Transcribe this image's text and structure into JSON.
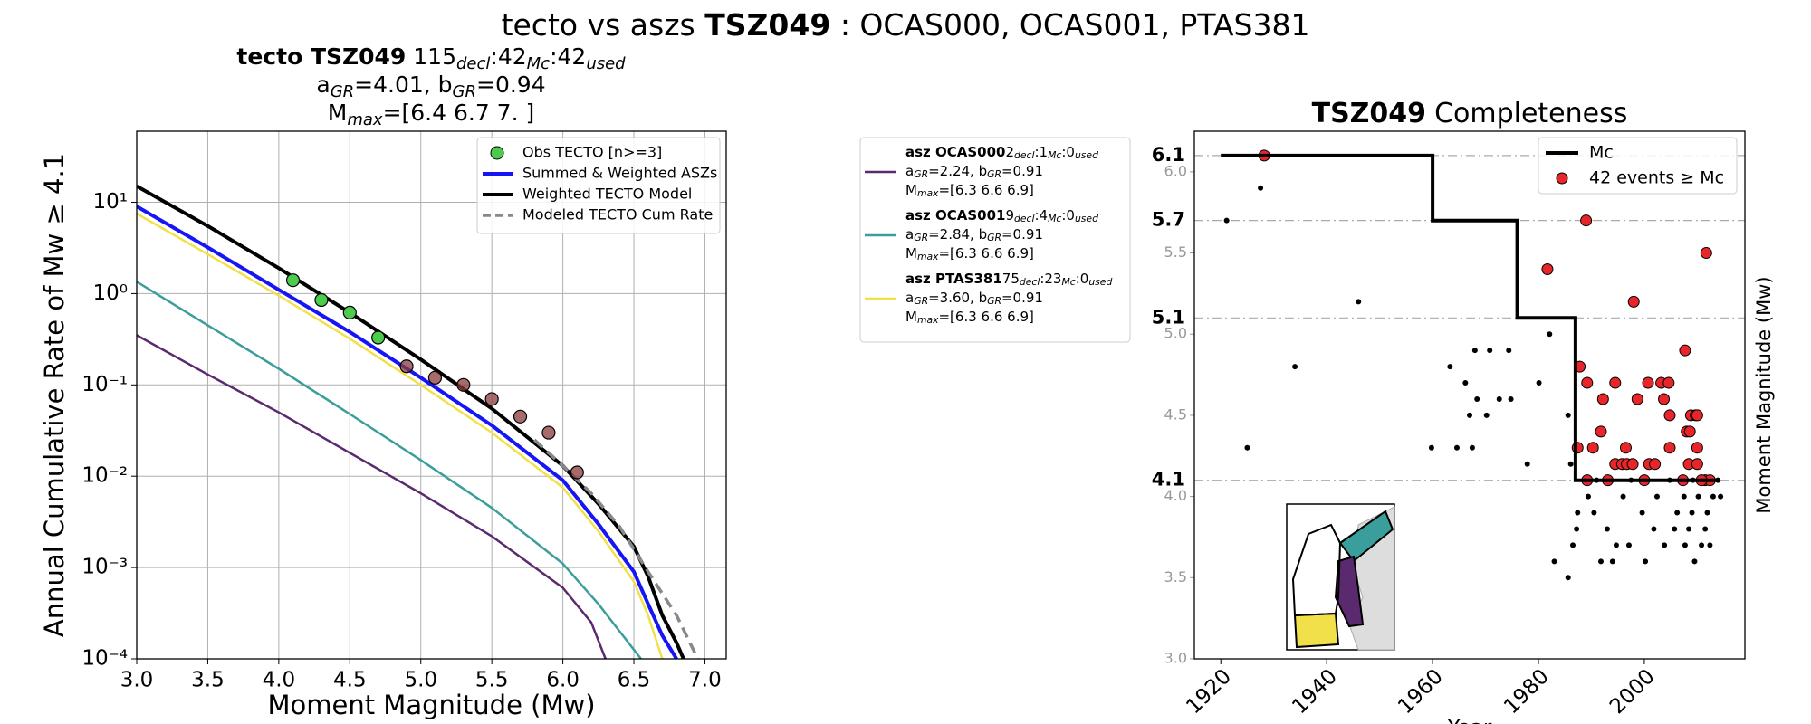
{
  "title": [
    "tecto vs aszs",
    "TSZ049",
    ": OCAS000, OCAS001, PTAS381"
  ],
  "chart_data": [
    {
      "type": "line",
      "subtitle_bold": "tecto TSZ049",
      "subtitle": [
        [
          "  115",
          "decl",
          ":42",
          "Mc",
          ":42",
          "used"
        ],
        [
          "a",
          "GR",
          "=4.01,  b",
          "GR",
          "=0.94"
        ],
        [
          "M",
          "max",
          "=[6.4 6.7 7. ]"
        ]
      ],
      "xlabel": "Moment Magnitude (Mw)",
      "ylabel": "Annual Cumulative Rate of Mw  ≥  4.1",
      "yscale": "log",
      "grid": true,
      "legend": "upper right",
      "xlim": [
        3.0,
        7.15
      ],
      "ylim": [
        0.0001,
        60
      ],
      "xticks": [
        {
          "value": 3,
          "label": "3.0"
        },
        {
          "value": 3.5,
          "label": "3.5"
        },
        {
          "value": 4,
          "label": "4.0"
        },
        {
          "value": 4.5,
          "label": "4.5"
        },
        {
          "value": 5,
          "label": "5.0"
        },
        {
          "value": 5.5,
          "label": "5.5"
        },
        {
          "value": 6,
          "label": "6.0"
        },
        {
          "value": 6.5,
          "label": "6.5"
        },
        {
          "value": 7,
          "label": "7.0"
        }
      ],
      "yticks": [
        {
          "value": 0.0001,
          "label": "10⁻⁴"
        },
        {
          "value": 0.001,
          "label": "10⁻³"
        },
        {
          "value": 0.01,
          "label": "10⁻²"
        },
        {
          "value": 0.1,
          "label": "10⁻¹"
        },
        {
          "value": 1,
          "label": "10⁰"
        },
        {
          "value": 10,
          "label": "10¹"
        }
      ],
      "series": [
        {
          "name": "asz OCAS000",
          "color": "#5b2a6e",
          "width": 2.5,
          "details": [
            [
              "2",
              "decl",
              ":1",
              "Mc",
              ":0",
              "used"
            ],
            [
              "a",
              "GR",
              "=2.24,  b",
              "GR",
              "=0.91"
            ],
            [
              "M",
              "max",
              "=[6.3 6.6 6.9]"
            ]
          ],
          "x": [
            3.0,
            3.5,
            4.0,
            4.5,
            5.0,
            5.5,
            6.0,
            6.2,
            6.3
          ],
          "values": [
            0.35,
            0.13,
            0.05,
            0.018,
            0.0065,
            0.0022,
            0.0006,
            0.00025,
            0.0001
          ]
        },
        {
          "name": "asz OCAS001",
          "color": "#3a9e9c",
          "width": 2.5,
          "details": [
            [
              "9",
              "decl",
              ":4",
              "Mc",
              ":0",
              "used"
            ],
            [
              "a",
              "GR",
              "=2.84,  b",
              "GR",
              "=0.91"
            ],
            [
              "M",
              "max",
              "=[6.3 6.6 6.9]"
            ]
          ],
          "x": [
            3.0,
            3.5,
            4.0,
            4.5,
            5.0,
            5.5,
            6.0,
            6.25,
            6.4,
            6.55
          ],
          "values": [
            1.35,
            0.45,
            0.15,
            0.048,
            0.015,
            0.0045,
            0.0011,
            0.0004,
            0.0002,
            0.0001
          ]
        },
        {
          "name": "asz PTAS381",
          "color": "#f2e04a",
          "width": 2.5,
          "details": [
            [
              "75",
              "decl",
              ":23",
              "Mc",
              ":0",
              "used"
            ],
            [
              "a",
              "GR",
              "=3.60,  b",
              "GR",
              "=0.91"
            ],
            [
              "M",
              "max",
              "=[6.3 6.6 6.9]"
            ]
          ],
          "x": [
            3.0,
            3.5,
            4.0,
            4.5,
            5.0,
            5.5,
            6.0,
            6.25,
            6.5,
            6.6,
            6.7
          ],
          "values": [
            7.5,
            2.7,
            0.95,
            0.32,
            0.1,
            0.03,
            0.0075,
            0.0025,
            0.0007,
            0.0003,
            0.0001
          ]
        },
        {
          "name": "Summed & Weighted ASZs",
          "color": "#1515f5",
          "width": 4,
          "x": [
            3.0,
            3.5,
            4.0,
            4.5,
            5.0,
            5.5,
            6.0,
            6.25,
            6.5,
            6.6,
            6.7,
            6.8
          ],
          "values": [
            9,
            3.2,
            1.1,
            0.38,
            0.12,
            0.036,
            0.009,
            0.003,
            0.0009,
            0.0004,
            0.00018,
            0.0001
          ]
        },
        {
          "name": "Weighted TECTO Model",
          "color": "#000000",
          "width": 4,
          "x": [
            3.0,
            3.5,
            4.0,
            4.5,
            5.0,
            5.5,
            6.0,
            6.25,
            6.5,
            6.6,
            6.7,
            6.8,
            6.85
          ],
          "values": [
            15,
            5.5,
            1.9,
            0.62,
            0.19,
            0.055,
            0.013,
            0.005,
            0.0017,
            0.0008,
            0.0003,
            0.00015,
            0.0001
          ]
        },
        {
          "name": "Modeled TECTO Cum Rate",
          "color": "#888888",
          "width": 3.5,
          "dash": true,
          "x": [
            5.8,
            6.0,
            6.2,
            6.4,
            6.6,
            6.8,
            6.95
          ],
          "values": [
            0.025,
            0.013,
            0.0065,
            0.0028,
            0.0009,
            0.0003,
            0.0001
          ]
        }
      ],
      "points": [
        {
          "name": "Obs TECTO [n>=3]",
          "color": "#4ccc4c",
          "x": [
            4.1,
            4.3,
            4.5,
            4.7
          ],
          "values": [
            1.4,
            0.85,
            0.62,
            0.33
          ]
        },
        {
          "color": "#8b3a3a",
          "x": [
            4.9,
            5.1,
            5.3,
            5.5,
            5.7,
            5.9,
            6.1
          ],
          "values": [
            0.16,
            0.12,
            0.1,
            0.07,
            0.045,
            0.03,
            0.011
          ]
        }
      ]
    },
    {
      "type": "scatter",
      "title": [
        "TSZ049",
        "Completeness"
      ],
      "xlabel": "Year",
      "ylabel": "Moment Magnitude (Mw)",
      "legend": "upper right",
      "xlim": [
        1915,
        2019
      ],
      "ylim": [
        3.0,
        6.25
      ],
      "xticks": [
        1920,
        1940,
        1960,
        1980,
        2000
      ],
      "yticks": [
        {
          "value": 3,
          "label": "3.0"
        },
        {
          "value": 3.5,
          "label": "3.5"
        },
        {
          "value": 4,
          "label": "4.0"
        },
        {
          "value": 4.5,
          "label": "4.5"
        },
        {
          "value": 5,
          "label": "5.0"
        },
        {
          "value": 5.5,
          "label": "5.5"
        },
        {
          "value": 6,
          "label": "6.0"
        }
      ],
      "mc_ticks": [
        4.1,
        5.1,
        5.7,
        6.1
      ],
      "step": {
        "name": "Mc",
        "color": "#000000",
        "x": [
          1920,
          1960,
          1960,
          1976,
          1976,
          1987,
          1987,
          2014
        ],
        "values": [
          6.1,
          6.1,
          5.7,
          5.7,
          5.1,
          5.1,
          4.1,
          4.1
        ]
      },
      "series": [
        {
          "color": "#000000",
          "x": [
            1921.1,
            1927.5,
            1925,
            1934,
            1946,
            1959.8,
            1963.3,
            1964.6,
            1966.2,
            1967,
            1967.5,
            1968,
            1968.4,
            1970.2,
            1970.8,
            1972.6,
            1974.4,
            1974.8,
            1977.9,
            1980.1,
            1982.1,
            1985.6,
            1986.1,
            1987.4,
            1987.2,
            1989.4,
            1986.5,
            1983,
            1985.6,
            1990.5,
            1991.8,
            1993,
            1994.7,
            1994,
            1996,
            1997.1,
            1999.6,
            2000.2,
            2001.8,
            2002.4,
            2003.8,
            2005.7,
            2006.2,
            2007.5,
            2007.7,
            2008.4,
            2009,
            2009.5,
            2010.2,
            2010.8,
            2011.5,
            2011.9,
            2012.4,
            2013,
            2013.9,
            2014.4,
            1991,
            1997.5,
            2004.8,
            2009.2
          ],
          "values": [
            5.7,
            5.9,
            4.3,
            4.8,
            5.2,
            4.3,
            4.8,
            4.3,
            4.7,
            4.5,
            4.3,
            4.9,
            4.6,
            4.5,
            4.9,
            4.6,
            4.9,
            4.6,
            4.2,
            4.7,
            5.0,
            4.5,
            4.2,
            3.9,
            3.8,
            4.0,
            3.7,
            3.6,
            3.5,
            3.9,
            3.6,
            3.8,
            3.7,
            3.6,
            4.0,
            3.7,
            3.9,
            3.6,
            3.8,
            4.0,
            3.7,
            3.8,
            3.9,
            4.0,
            3.7,
            3.8,
            3.9,
            3.6,
            4.0,
            3.7,
            3.8,
            3.9,
            3.7,
            4.0,
            4.1,
            4.0,
            4.1,
            4.1,
            4.1,
            4.1
          ]
        },
        {
          "name": "42 events ≥ Mc",
          "color": "#e8262a",
          "x": [
            1928.2,
            1981.7,
            1989,
            1998,
            2011.7,
            1987.8,
            1989.2,
            1994.5,
            2000.7,
            2003.2,
            2004.6,
            2007.7,
            1992.2,
            1998.7,
            2003.7,
            2004.8,
            2008.8,
            2009.7,
            2010,
            2008,
            2008.6,
            1987.4,
            1990.3,
            1996.5,
            2004.8,
            2010,
            1994.5,
            1995.8,
            1996.7,
            1997.8,
            2000.9,
            2008.4,
            2010,
            1989.2,
            1993.1,
            2000,
            2007.3,
            2011.5,
            2012.4,
            1991.8,
            2002,
            2010.8
          ],
          "values": [
            6.1,
            5.4,
            5.7,
            5.2,
            5.5,
            4.8,
            4.7,
            4.7,
            4.7,
            4.7,
            4.7,
            4.9,
            4.6,
            4.6,
            4.6,
            4.5,
            4.5,
            4.5,
            4.5,
            4.4,
            4.4,
            4.3,
            4.3,
            4.3,
            4.3,
            4.3,
            4.2,
            4.2,
            4.2,
            4.2,
            4.2,
            4.2,
            4.2,
            4.1,
            4.1,
            4.1,
            4.1,
            4.1,
            4.1,
            4.4,
            4.2,
            4.1
          ]
        }
      ]
    }
  ]
}
